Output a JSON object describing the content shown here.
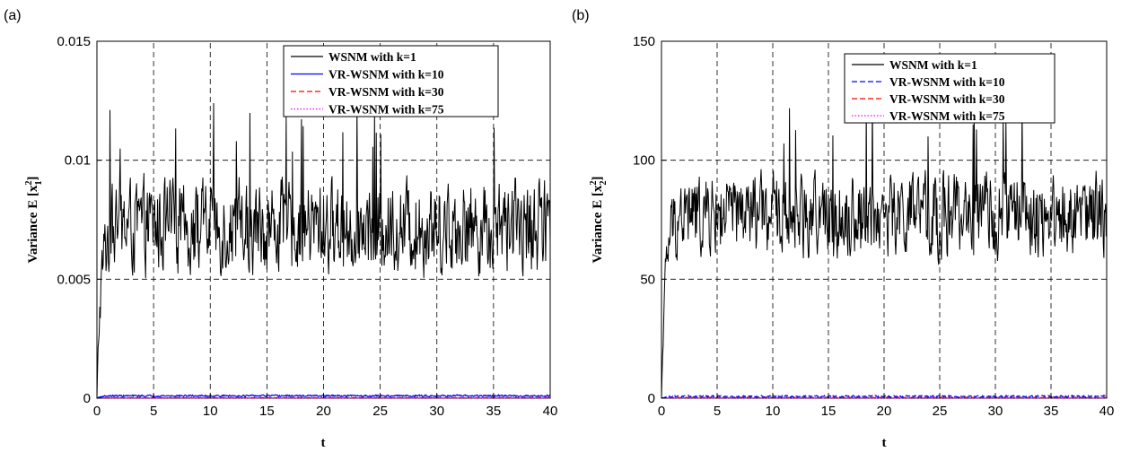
{
  "chart_data": [
    {
      "type": "line",
      "panel_label": "(a)",
      "xlabel": "t",
      "ylabel_main": "Variance  E [x",
      "ylabel_sup": "2",
      "ylabel_sub": "1",
      "ylabel_end": "]",
      "xlim": [
        0,
        40
      ],
      "ylim": [
        0,
        0.015
      ],
      "xticks": [
        "0",
        "5",
        "10",
        "15",
        "20",
        "25",
        "30",
        "35",
        "40"
      ],
      "yticks": [
        "0",
        "0.005",
        "0.01",
        "0.015"
      ],
      "grid": true,
      "legend_position": "top-right",
      "series": [
        {
          "name": "WSNM with k=1",
          "color": "#000000",
          "style": "solid",
          "baseline": 0.0072,
          "amplitude": 0.0016,
          "peak_max": 0.0124
        },
        {
          "name": "VR-WSNM with k=10",
          "color": "#0000ff",
          "style": "solid",
          "baseline": 0.0001,
          "amplitude": 3e-05
        },
        {
          "name": "VR-WSNM with k=30",
          "color": "#ff0000",
          "style": "dashed",
          "baseline": 2e-05,
          "amplitude": 1e-05
        },
        {
          "name": "VR-WSNM with k=75",
          "color": "#ff00ff",
          "style": "dotted",
          "baseline": 1e-05,
          "amplitude": 5e-06
        }
      ]
    },
    {
      "type": "line",
      "panel_label": "(b)",
      "xlabel": "t",
      "ylabel_main": "Variance  E [x",
      "ylabel_sup": "2",
      "ylabel_sub": "2",
      "ylabel_end": "]",
      "xlim": [
        0,
        40
      ],
      "ylim": [
        0,
        150
      ],
      "xticks": [
        "0",
        "5",
        "10",
        "15",
        "20",
        "25",
        "30",
        "35",
        "40"
      ],
      "yticks": [
        "0",
        "50",
        "100",
        "150"
      ],
      "grid": true,
      "legend_position": "top-right",
      "series": [
        {
          "name": "WSNM with k=1",
          "color": "#000000",
          "style": "solid",
          "baseline": 77,
          "amplitude": 14,
          "peak_max": 127
        },
        {
          "name": "VR-WSNM with k=10",
          "color": "#0000ff",
          "style": "dashed",
          "baseline": 0.8,
          "amplitude": 0.3
        },
        {
          "name": "VR-WSNM with k=30",
          "color": "#ff0000",
          "style": "dashed",
          "baseline": 0.3,
          "amplitude": 0.1
        },
        {
          "name": "VR-WSNM with k=75",
          "color": "#ff00ff",
          "style": "dotted",
          "baseline": 0.1,
          "amplitude": 0.05
        }
      ]
    }
  ]
}
